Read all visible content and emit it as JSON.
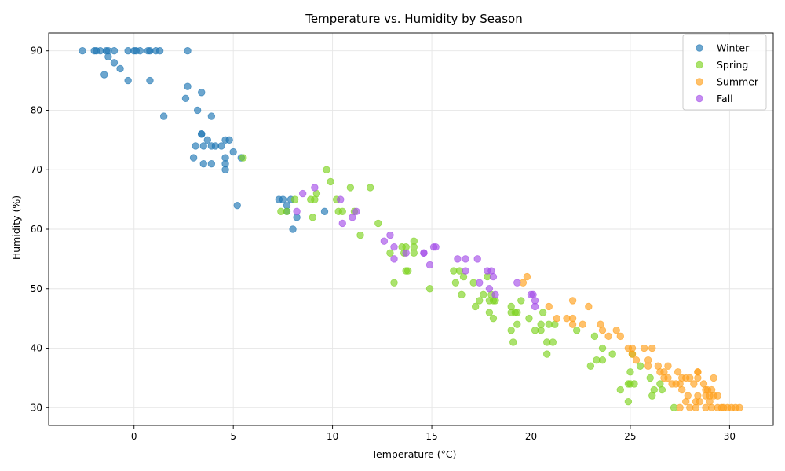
{
  "chart_data": {
    "type": "scatter",
    "title": "Temperature vs. Humidity by Season",
    "xlabel": "Temperature (°C)",
    "ylabel": "Humidity (%)",
    "xlim": [
      -4.3,
      32.2
    ],
    "ylim": [
      27,
      93
    ],
    "xticks": [
      0,
      5,
      10,
      15,
      20,
      25,
      30
    ],
    "yticks": [
      30,
      40,
      50,
      60,
      70,
      80,
      90
    ],
    "grid": true,
    "legend_position": "top-right",
    "marker_alpha": 0.65,
    "series": [
      {
        "name": "Winter",
        "color": "#1f77b4",
        "points": [
          [
            -2.6,
            90
          ],
          [
            -2,
            90
          ],
          [
            -1.9,
            90
          ],
          [
            -1.7,
            90
          ],
          [
            -1.4,
            90
          ],
          [
            -1.3,
            90
          ],
          [
            -1.3,
            89
          ],
          [
            -1,
            90
          ],
          [
            -0.3,
            90
          ],
          [
            0,
            90
          ],
          [
            0.1,
            90
          ],
          [
            0.3,
            90
          ],
          [
            0.7,
            90
          ],
          [
            0.8,
            90
          ],
          [
            1.1,
            90
          ],
          [
            1.3,
            90
          ],
          [
            2.7,
            90
          ],
          [
            -1,
            88
          ],
          [
            -0.7,
            87
          ],
          [
            -1.5,
            86
          ],
          [
            -0.3,
            85
          ],
          [
            0.8,
            85
          ],
          [
            2.7,
            84
          ],
          [
            3.4,
            83
          ],
          [
            2.6,
            82
          ],
          [
            3.2,
            80
          ],
          [
            1.5,
            79
          ],
          [
            3.9,
            79
          ],
          [
            3.4,
            76
          ],
          [
            3.4,
            76
          ],
          [
            3.7,
            75
          ],
          [
            4.6,
            75
          ],
          [
            4.8,
            75
          ],
          [
            3.1,
            74
          ],
          [
            3.5,
            74
          ],
          [
            3.9,
            74
          ],
          [
            4.1,
            74
          ],
          [
            4.4,
            74
          ],
          [
            5,
            73
          ],
          [
            3,
            72
          ],
          [
            4.6,
            72
          ],
          [
            5.4,
            72
          ],
          [
            3.5,
            71
          ],
          [
            3.9,
            71
          ],
          [
            4.6,
            71
          ],
          [
            4.6,
            70
          ],
          [
            7.3,
            65
          ],
          [
            7.5,
            65
          ],
          [
            7.9,
            65
          ],
          [
            7.7,
            64
          ],
          [
            5.2,
            64
          ],
          [
            7.7,
            63
          ],
          [
            9.6,
            63
          ],
          [
            8.2,
            62
          ],
          [
            8,
            60
          ]
        ]
      },
      {
        "name": "Spring",
        "color": "#7ed321",
        "points": [
          [
            5.5,
            72
          ],
          [
            9.7,
            70
          ],
          [
            9.9,
            68
          ],
          [
            10.9,
            67
          ],
          [
            11.9,
            67
          ],
          [
            9.2,
            66
          ],
          [
            8.1,
            65
          ],
          [
            8.9,
            65
          ],
          [
            9.1,
            65
          ],
          [
            10.2,
            65
          ],
          [
            7.4,
            63
          ],
          [
            7.7,
            63
          ],
          [
            10.3,
            63
          ],
          [
            10.5,
            63
          ],
          [
            11.1,
            63
          ],
          [
            9,
            62
          ],
          [
            12.3,
            61
          ],
          [
            11.4,
            59
          ],
          [
            14.1,
            58
          ],
          [
            13.5,
            57
          ],
          [
            13.7,
            57
          ],
          [
            14.1,
            57
          ],
          [
            12.9,
            56
          ],
          [
            13.6,
            56
          ],
          [
            14.1,
            56
          ],
          [
            13.7,
            53
          ],
          [
            13.8,
            53
          ],
          [
            16.1,
            53
          ],
          [
            16.4,
            53
          ],
          [
            13.1,
            51
          ],
          [
            16.2,
            51
          ],
          [
            16.6,
            52
          ],
          [
            17.1,
            51
          ],
          [
            17.8,
            52
          ],
          [
            14.9,
            50
          ],
          [
            16.5,
            49
          ],
          [
            17.6,
            49
          ],
          [
            18,
            49
          ],
          [
            17.4,
            48
          ],
          [
            17.9,
            48
          ],
          [
            18.1,
            48
          ],
          [
            18.2,
            48
          ],
          [
            19.5,
            48
          ],
          [
            17.2,
            47
          ],
          [
            19,
            47
          ],
          [
            19,
            46
          ],
          [
            19.2,
            46
          ],
          [
            17.9,
            46
          ],
          [
            19.3,
            46
          ],
          [
            20.6,
            46
          ],
          [
            18.1,
            45
          ],
          [
            19.9,
            45
          ],
          [
            19.3,
            44
          ],
          [
            20.5,
            44
          ],
          [
            20.9,
            44
          ],
          [
            21.2,
            44
          ],
          [
            19,
            43
          ],
          [
            20.2,
            43
          ],
          [
            20.5,
            43
          ],
          [
            22.3,
            43
          ],
          [
            23.2,
            42
          ],
          [
            19.1,
            41
          ],
          [
            20.8,
            41
          ],
          [
            21.1,
            41
          ],
          [
            23.6,
            40
          ],
          [
            20.8,
            39
          ],
          [
            24.1,
            39
          ],
          [
            25.1,
            39
          ],
          [
            23.3,
            38
          ],
          [
            23.6,
            38
          ],
          [
            23,
            37
          ],
          [
            25.5,
            37
          ],
          [
            25,
            36
          ],
          [
            26,
            35
          ],
          [
            26.5,
            34
          ],
          [
            25,
            34
          ],
          [
            25.2,
            34
          ],
          [
            24.9,
            34
          ],
          [
            24.5,
            33
          ],
          [
            26.2,
            33
          ],
          [
            26.6,
            33
          ],
          [
            26.1,
            32
          ],
          [
            24.9,
            31
          ],
          [
            27.2,
            30
          ]
        ]
      },
      {
        "name": "Summer",
        "color": "#ff9f1c",
        "points": [
          [
            19.8,
            52
          ],
          [
            19.6,
            51
          ],
          [
            20.9,
            47
          ],
          [
            22.9,
            47
          ],
          [
            22.1,
            48
          ],
          [
            21.3,
            45
          ],
          [
            21.8,
            45
          ],
          [
            22.1,
            45
          ],
          [
            22.1,
            44
          ],
          [
            22.6,
            44
          ],
          [
            23.5,
            44
          ],
          [
            23.6,
            43
          ],
          [
            24.3,
            43
          ],
          [
            23.9,
            42
          ],
          [
            24.5,
            42
          ],
          [
            24.9,
            40
          ],
          [
            25.1,
            40
          ],
          [
            25.7,
            40
          ],
          [
            26.1,
            40
          ],
          [
            25.1,
            39
          ],
          [
            25.3,
            38
          ],
          [
            25.9,
            38
          ],
          [
            26.9,
            37
          ],
          [
            25.9,
            37
          ],
          [
            26.4,
            37
          ],
          [
            26.5,
            36
          ],
          [
            26.7,
            36
          ],
          [
            27.4,
            36
          ],
          [
            28.4,
            36
          ],
          [
            28.4,
            36
          ],
          [
            26.7,
            35
          ],
          [
            26.9,
            35
          ],
          [
            27.6,
            35
          ],
          [
            27.8,
            35
          ],
          [
            28,
            35
          ],
          [
            28.4,
            35
          ],
          [
            29.2,
            35
          ],
          [
            27.1,
            34
          ],
          [
            27.3,
            34
          ],
          [
            27.5,
            34
          ],
          [
            28.2,
            34
          ],
          [
            28.7,
            34
          ],
          [
            27.6,
            33
          ],
          [
            28.8,
            33
          ],
          [
            28.9,
            33
          ],
          [
            29.1,
            33
          ],
          [
            27.9,
            32
          ],
          [
            28.4,
            32
          ],
          [
            28.8,
            32
          ],
          [
            29,
            32
          ],
          [
            29.2,
            32
          ],
          [
            29.4,
            32
          ],
          [
            28.3,
            31
          ],
          [
            28.5,
            31
          ],
          [
            27.8,
            31
          ],
          [
            29,
            31
          ],
          [
            27.5,
            30
          ],
          [
            28,
            30
          ],
          [
            28.3,
            30
          ],
          [
            28.8,
            30
          ],
          [
            29.1,
            30
          ],
          [
            29.4,
            30
          ],
          [
            29.6,
            30
          ],
          [
            29.7,
            30
          ],
          [
            29.9,
            30
          ],
          [
            30.1,
            30
          ],
          [
            30.3,
            30
          ],
          [
            30.5,
            30
          ]
        ]
      },
      {
        "name": "Fall",
        "color": "#a54ee8",
        "points": [
          [
            9.1,
            67
          ],
          [
            10.4,
            65
          ],
          [
            8.5,
            66
          ],
          [
            11.2,
            63
          ],
          [
            8.2,
            63
          ],
          [
            11,
            62
          ],
          [
            10.5,
            61
          ],
          [
            12.9,
            59
          ],
          [
            12.6,
            58
          ],
          [
            13.1,
            57
          ],
          [
            15.1,
            57
          ],
          [
            15.2,
            57
          ],
          [
            14.6,
            56
          ],
          [
            14.6,
            56
          ],
          [
            13.7,
            56
          ],
          [
            13.1,
            55
          ],
          [
            16.3,
            55
          ],
          [
            16.7,
            55
          ],
          [
            17.3,
            55
          ],
          [
            14.9,
            54
          ],
          [
            16.7,
            53
          ],
          [
            17.8,
            53
          ],
          [
            18,
            53
          ],
          [
            18.1,
            52
          ],
          [
            17.4,
            51
          ],
          [
            19.3,
            51
          ],
          [
            17.9,
            50
          ],
          [
            18.2,
            49
          ],
          [
            20,
            49
          ],
          [
            20.1,
            49
          ],
          [
            20.2,
            48
          ],
          [
            20.2,
            47
          ]
        ]
      }
    ]
  }
}
